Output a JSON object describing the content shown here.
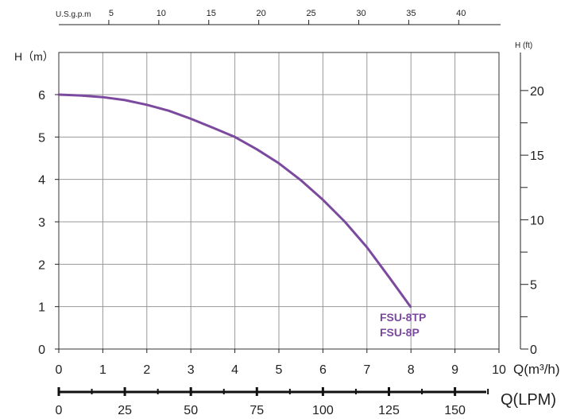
{
  "chart_data": {
    "type": "line",
    "title": "",
    "xlabel": "Q(m³/h)",
    "ylabel": "H（m）",
    "xlim": [
      0,
      10
    ],
    "ylim": [
      0,
      6.5
    ],
    "x_ticks": [
      0,
      1,
      2,
      3,
      4,
      5,
      6,
      7,
      8,
      9,
      10
    ],
    "y_ticks": [
      0,
      1,
      2,
      3,
      4,
      5,
      6
    ],
    "grid": true,
    "series": [
      {
        "name": "FSU-8TP / FSU-8P",
        "color": "#7b4a9e",
        "x": [
          0,
          0.5,
          1,
          1.5,
          2,
          2.5,
          3,
          3.5,
          4,
          4.5,
          5,
          5.5,
          6,
          6.5,
          7,
          7.5,
          7.99
        ],
        "y": [
          6.0,
          5.98,
          5.94,
          5.87,
          5.76,
          5.62,
          5.43,
          5.22,
          5.0,
          4.71,
          4.38,
          3.98,
          3.52,
          3.0,
          2.4,
          1.7,
          1.0
        ]
      }
    ],
    "curve_labels": [
      "FSU-8TP",
      "FSU-8P"
    ],
    "secondary_axes": {
      "top": {
        "label": "U.S.g.p.m",
        "ticks": [
          5,
          10,
          15,
          20,
          25,
          30,
          35,
          40
        ],
        "factor_from_m3h": 4.4029
      },
      "right": {
        "label": "H (ft)",
        "ticks": [
          0,
          5,
          10,
          15,
          20
        ],
        "factor_from_m": 3.2808
      },
      "bottom": {
        "label": "Q(LPM)",
        "ticks": [
          0,
          25,
          50,
          75,
          100,
          125,
          150
        ],
        "factor_from_m3h": 16.6667
      }
    }
  }
}
